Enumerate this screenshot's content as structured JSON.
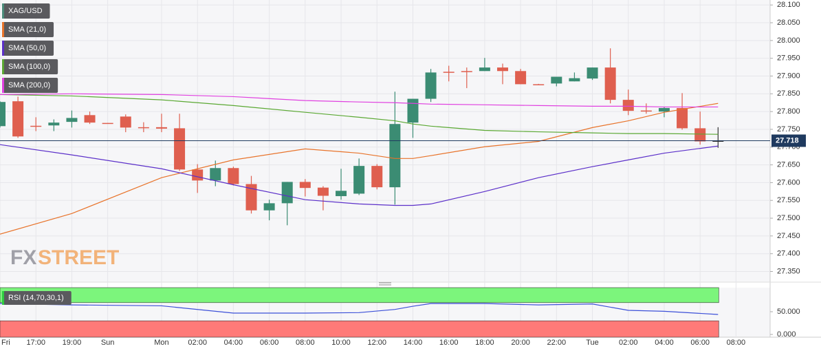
{
  "chart_data": [
    {
      "type": "candlestick",
      "name": "XAG/USD",
      "up_color": "#3b8c73",
      "down_color": "#df5f4f",
      "flat_color": "#333333",
      "candles": [
        {
          "open": 27.759,
          "high": 27.829,
          "low": 27.755,
          "close": 27.827
        },
        {
          "open": 27.829,
          "high": 27.842,
          "low": 27.726,
          "close": 27.73
        },
        {
          "open": 27.76,
          "high": 27.784,
          "low": 27.745,
          "close": 27.758
        },
        {
          "open": 27.761,
          "high": 27.778,
          "low": 27.745,
          "close": 27.769
        },
        {
          "open": 27.771,
          "high": 27.803,
          "low": 27.755,
          "close": 27.782
        },
        {
          "open": 27.79,
          "high": 27.8,
          "low": 27.765,
          "close": 27.769
        },
        {
          "open": 27.768,
          "high": 27.768,
          "low": 27.767,
          "close": 27.767
        },
        {
          "open": 27.786,
          "high": 27.792,
          "low": 27.742,
          "close": 27.755
        },
        {
          "open": 27.756,
          "high": 27.77,
          "low": 27.742,
          "close": 27.754
        },
        {
          "open": 27.756,
          "high": 27.794,
          "low": 27.742,
          "close": 27.752
        },
        {
          "open": 27.753,
          "high": 27.794,
          "low": 27.633,
          "close": 27.637
        },
        {
          "open": 27.637,
          "high": 27.652,
          "low": 27.571,
          "close": 27.606
        },
        {
          "open": 27.606,
          "high": 27.662,
          "low": 27.59,
          "close": 27.641
        },
        {
          "open": 27.641,
          "high": 27.645,
          "low": 27.592,
          "close": 27.596
        },
        {
          "open": 27.596,
          "high": 27.619,
          "low": 27.513,
          "close": 27.522
        },
        {
          "open": 27.522,
          "high": 27.552,
          "low": 27.494,
          "close": 27.542
        },
        {
          "open": 27.542,
          "high": 27.602,
          "low": 27.48,
          "close": 27.602
        },
        {
          "open": 27.602,
          "high": 27.61,
          "low": 27.561,
          "close": 27.585
        },
        {
          "open": 27.586,
          "high": 27.59,
          "low": 27.522,
          "close": 27.563
        },
        {
          "open": 27.562,
          "high": 27.639,
          "low": 27.552,
          "close": 27.577
        },
        {
          "open": 27.569,
          "high": 27.668,
          "low": 27.565,
          "close": 27.647
        },
        {
          "open": 27.647,
          "high": 27.652,
          "low": 27.581,
          "close": 27.587
        },
        {
          "open": 27.587,
          "high": 27.856,
          "low": 27.538,
          "close": 27.765
        },
        {
          "open": 27.769,
          "high": 27.836,
          "low": 27.726,
          "close": 27.836
        },
        {
          "open": 27.836,
          "high": 27.92,
          "low": 27.827,
          "close": 27.91
        },
        {
          "open": 27.912,
          "high": 27.929,
          "low": 27.885,
          "close": 27.91
        },
        {
          "open": 27.914,
          "high": 27.924,
          "low": 27.866,
          "close": 27.912
        },
        {
          "open": 27.914,
          "high": 27.951,
          "low": 27.914,
          "close": 27.924
        },
        {
          "open": 27.924,
          "high": 27.935,
          "low": 27.877,
          "close": 27.914
        },
        {
          "open": 27.914,
          "high": 27.92,
          "low": 27.877,
          "close": 27.877
        },
        {
          "open": 27.877,
          "high": 27.878,
          "low": 27.875,
          "close": 27.876
        },
        {
          "open": 27.879,
          "high": 27.898,
          "low": 27.871,
          "close": 27.898
        },
        {
          "open": 27.885,
          "high": 27.91,
          "low": 27.885,
          "close": 27.894
        },
        {
          "open": 27.893,
          "high": 27.924,
          "low": 27.889,
          "close": 27.924
        },
        {
          "open": 27.924,
          "high": 27.978,
          "low": 27.823,
          "close": 27.833
        },
        {
          "open": 27.833,
          "high": 27.862,
          "low": 27.79,
          "close": 27.802
        },
        {
          "open": 27.803,
          "high": 27.823,
          "low": 27.794,
          "close": 27.801
        },
        {
          "open": 27.8,
          "high": 27.813,
          "low": 27.784,
          "close": 27.81
        },
        {
          "open": 27.81,
          "high": 27.852,
          "low": 27.749,
          "close": 27.753
        },
        {
          "open": 27.753,
          "high": 27.8,
          "low": 27.707,
          "close": 27.716
        },
        {
          "open": 27.718,
          "high": 27.756,
          "low": 27.698,
          "close": 27.718
        }
      ],
      "series": [
        {
          "name": "SMA (21,0)",
          "color": "#e8732a",
          "x": [
            0,
            4,
            9,
            13,
            17,
            20,
            22,
            23,
            24,
            27,
            30,
            33,
            35,
            37,
            40
          ],
          "values": [
            27.455,
            27.513,
            27.614,
            27.664,
            27.695,
            27.683,
            27.668,
            27.668,
            27.676,
            27.701,
            27.716,
            27.755,
            27.774,
            27.798,
            27.823
          ]
        },
        {
          "name": "SMA (50,0)",
          "color": "#5b2fc9",
          "x": [
            0,
            4,
            9,
            13,
            17,
            20,
            22,
            23,
            24,
            27,
            30,
            33,
            35,
            37,
            40
          ],
          "values": [
            27.707,
            27.678,
            27.639,
            27.594,
            27.552,
            27.54,
            27.536,
            27.536,
            27.54,
            27.575,
            27.614,
            27.645,
            27.664,
            27.683,
            27.703
          ]
        },
        {
          "name": "SMA (100,0)",
          "color": "#5aa832",
          "x": [
            0,
            4,
            9,
            13,
            17,
            20,
            22,
            23,
            24,
            27,
            30,
            33,
            35,
            37,
            40
          ],
          "values": [
            27.848,
            27.844,
            27.833,
            27.817,
            27.798,
            27.784,
            27.774,
            27.765,
            27.759,
            27.747,
            27.743,
            27.74,
            27.738,
            27.738,
            27.736
          ]
        },
        {
          "name": "SMA (200,0)",
          "color": "#e040e0",
          "x": [
            0,
            4,
            9,
            13,
            17,
            20,
            22,
            23,
            24,
            27,
            30,
            33,
            35,
            37,
            40
          ],
          "values": [
            27.848,
            27.85,
            27.848,
            27.842,
            27.831,
            27.827,
            27.825,
            27.823,
            27.821,
            27.819,
            27.817,
            27.815,
            27.815,
            27.813,
            27.813
          ]
        }
      ],
      "last_price": 27.718,
      "last_price_label": "27.718",
      "ylim": [
        27.32,
        28.114
      ],
      "yticks": [
        {
          "value": 28.1,
          "label": "28.100"
        },
        {
          "value": 28.05,
          "label": "28.050"
        },
        {
          "value": 28.0,
          "label": "28.000"
        },
        {
          "value": 27.95,
          "label": "27.950"
        },
        {
          "value": 27.9,
          "label": "27.900"
        },
        {
          "value": 27.85,
          "label": "27.850"
        },
        {
          "value": 27.8,
          "label": "27.800"
        },
        {
          "value": 27.75,
          "label": "27.750"
        },
        {
          "value": 27.7,
          "label": "27.700"
        },
        {
          "value": 27.65,
          "label": "27.650"
        },
        {
          "value": 27.6,
          "label": "27.600"
        },
        {
          "value": 27.55,
          "label": "27.550"
        },
        {
          "value": 27.5,
          "label": "27.500"
        },
        {
          "value": 27.45,
          "label": "27.450"
        },
        {
          "value": 27.4,
          "label": "27.400"
        },
        {
          "value": 27.35,
          "label": "27.350"
        }
      ],
      "xlim": [
        0,
        42.9
      ],
      "xticks": [
        {
          "value": 0,
          "label": "Fri"
        },
        {
          "value": 2,
          "label": "17:00"
        },
        {
          "value": 4,
          "label": "19:00"
        },
        {
          "value": 6,
          "label": "Sun"
        },
        {
          "value": 9,
          "label": "Mon"
        },
        {
          "value": 11,
          "label": "02:00"
        },
        {
          "value": 13,
          "label": "04:00"
        },
        {
          "value": 15,
          "label": "06:00"
        },
        {
          "value": 17,
          "label": "08:00"
        },
        {
          "value": 19,
          "label": "10:00"
        },
        {
          "value": 21,
          "label": "12:00"
        },
        {
          "value": 23,
          "label": "14:00"
        },
        {
          "value": 25,
          "label": "16:00"
        },
        {
          "value": 27,
          "label": "18:00"
        },
        {
          "value": 29,
          "label": "20:00"
        },
        {
          "value": 31,
          "label": "22:00"
        },
        {
          "value": 33,
          "label": "Tue"
        },
        {
          "value": 35,
          "label": "02:00"
        },
        {
          "value": 37,
          "label": "04:00"
        },
        {
          "value": 39,
          "label": "06:00"
        },
        {
          "value": 41,
          "label": "08:00"
        }
      ],
      "grid": true,
      "watermark": [
        "FX",
        "STREET"
      ]
    },
    {
      "type": "line",
      "series": [
        {
          "name": "RSI (14,70,30,1)",
          "color": "#3b4fd8",
          "x": [
            0,
            4,
            9,
            13,
            17,
            20,
            22,
            23,
            24,
            27,
            30,
            33,
            35,
            37,
            40
          ],
          "values": [
            68,
            65,
            63,
            47,
            47,
            48,
            55,
            62,
            68,
            68,
            65,
            67,
            53,
            51,
            44
          ]
        }
      ],
      "overbought": 70,
      "oversold": 30,
      "overbought_color": "#7cf57c",
      "oversold_color": "#ff7a78",
      "ylim": [
        -6,
        103
      ],
      "yticks": [
        {
          "value": 50,
          "label": "50.000"
        },
        {
          "value": 0,
          "label": "0.000"
        }
      ]
    }
  ]
}
